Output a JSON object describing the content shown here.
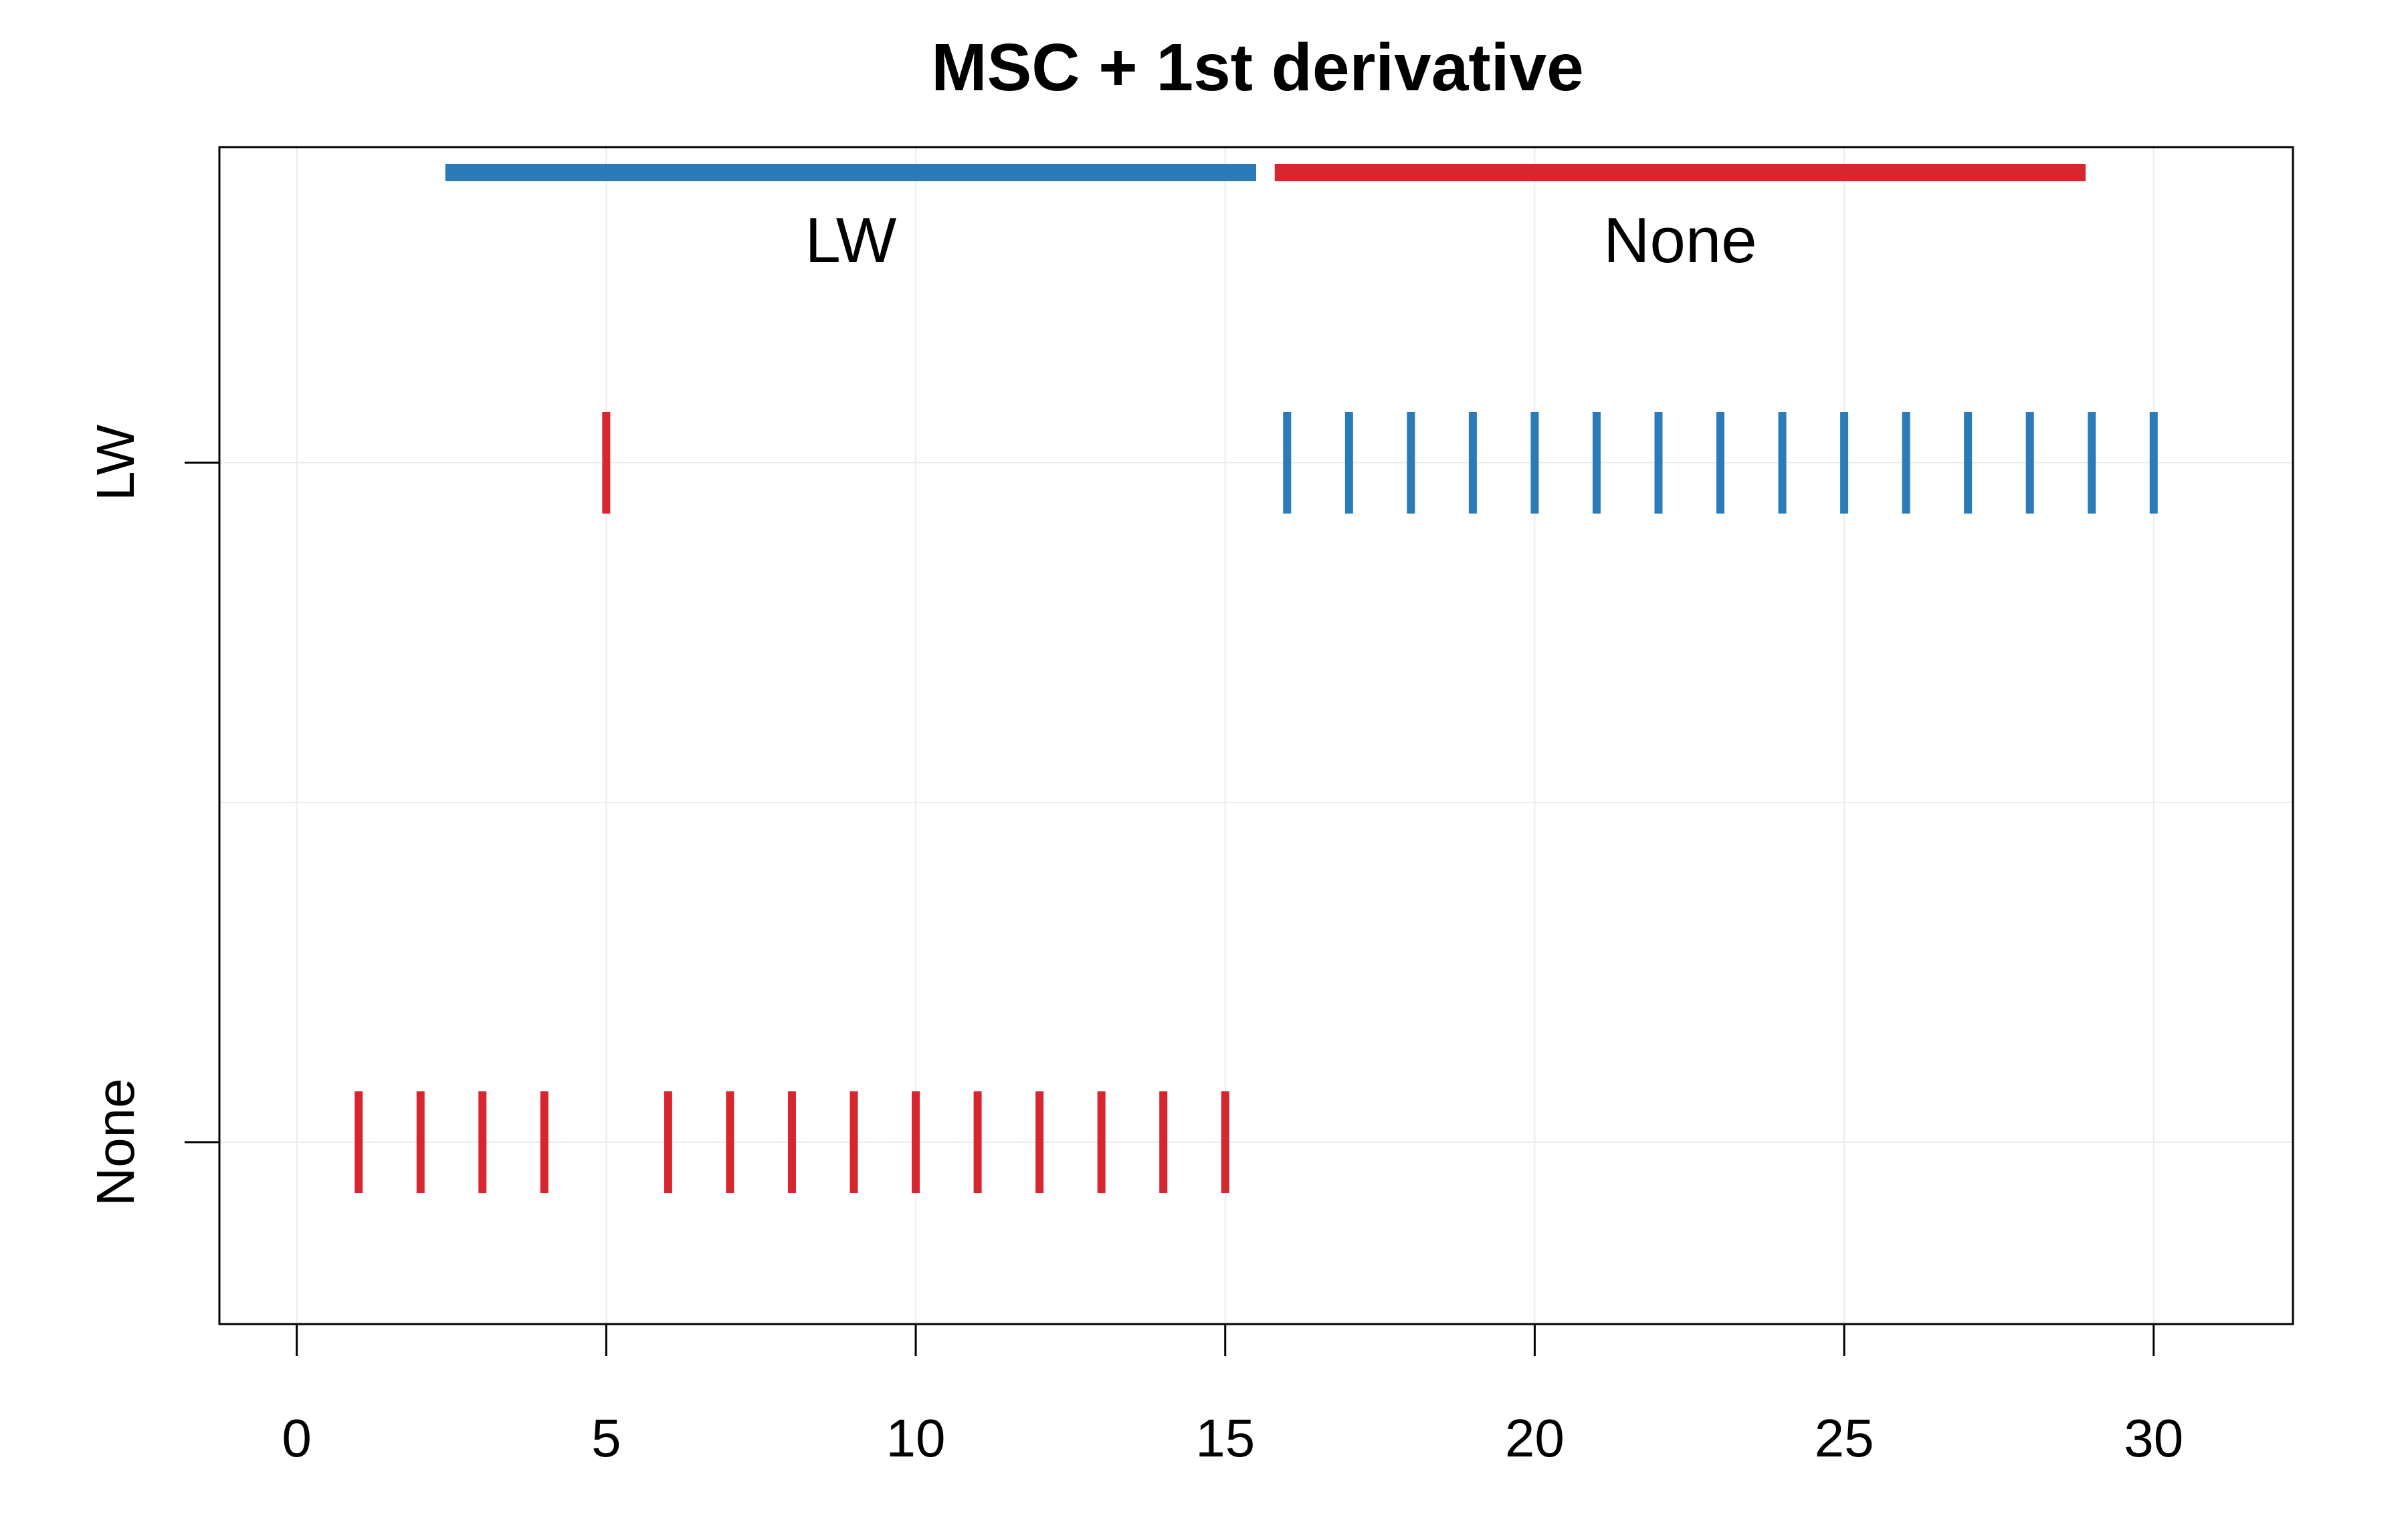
{
  "chart_data": {
    "type": "scatter",
    "title": "MSC + 1st derivative",
    "xlabel": "",
    "ylabel": "",
    "xlim": [
      -1.25,
      32.25
    ],
    "x_ticks": [
      "0",
      "5",
      "10",
      "15",
      "20",
      "25",
      "30"
    ],
    "y_categories": [
      "None",
      "LW"
    ],
    "grid": true,
    "colors": {
      "LW": "#2b7bb9",
      "None": "#d7262e"
    },
    "groups": [
      {
        "name": "LW",
        "color": "LW",
        "x_start": 2.4,
        "x_end": 15.5
      },
      {
        "name": "None",
        "color": "None",
        "x_start": 15.8,
        "x_end": 28.9
      }
    ],
    "series": [
      {
        "y": "LW",
        "points": [
          {
            "x": 5,
            "color": "None"
          },
          {
            "x": 16,
            "color": "LW"
          },
          {
            "x": 17,
            "color": "LW"
          },
          {
            "x": 18,
            "color": "LW"
          },
          {
            "x": 19,
            "color": "LW"
          },
          {
            "x": 20,
            "color": "LW"
          },
          {
            "x": 21,
            "color": "LW"
          },
          {
            "x": 22,
            "color": "LW"
          },
          {
            "x": 23,
            "color": "LW"
          },
          {
            "x": 24,
            "color": "LW"
          },
          {
            "x": 25,
            "color": "LW"
          },
          {
            "x": 26,
            "color": "LW"
          },
          {
            "x": 27,
            "color": "LW"
          },
          {
            "x": 28,
            "color": "LW"
          },
          {
            "x": 29,
            "color": "LW"
          },
          {
            "x": 30,
            "color": "LW"
          }
        ]
      },
      {
        "y": "None",
        "points": [
          {
            "x": 1,
            "color": "None"
          },
          {
            "x": 2,
            "color": "None"
          },
          {
            "x": 3,
            "color": "None"
          },
          {
            "x": 4,
            "color": "None"
          },
          {
            "x": 6,
            "color": "None"
          },
          {
            "x": 7,
            "color": "None"
          },
          {
            "x": 8,
            "color": "None"
          },
          {
            "x": 9,
            "color": "None"
          },
          {
            "x": 10,
            "color": "None"
          },
          {
            "x": 11,
            "color": "None"
          },
          {
            "x": 12,
            "color": "None"
          },
          {
            "x": 13,
            "color": "None"
          },
          {
            "x": 14,
            "color": "None"
          },
          {
            "x": 15,
            "color": "None"
          }
        ]
      }
    ]
  }
}
